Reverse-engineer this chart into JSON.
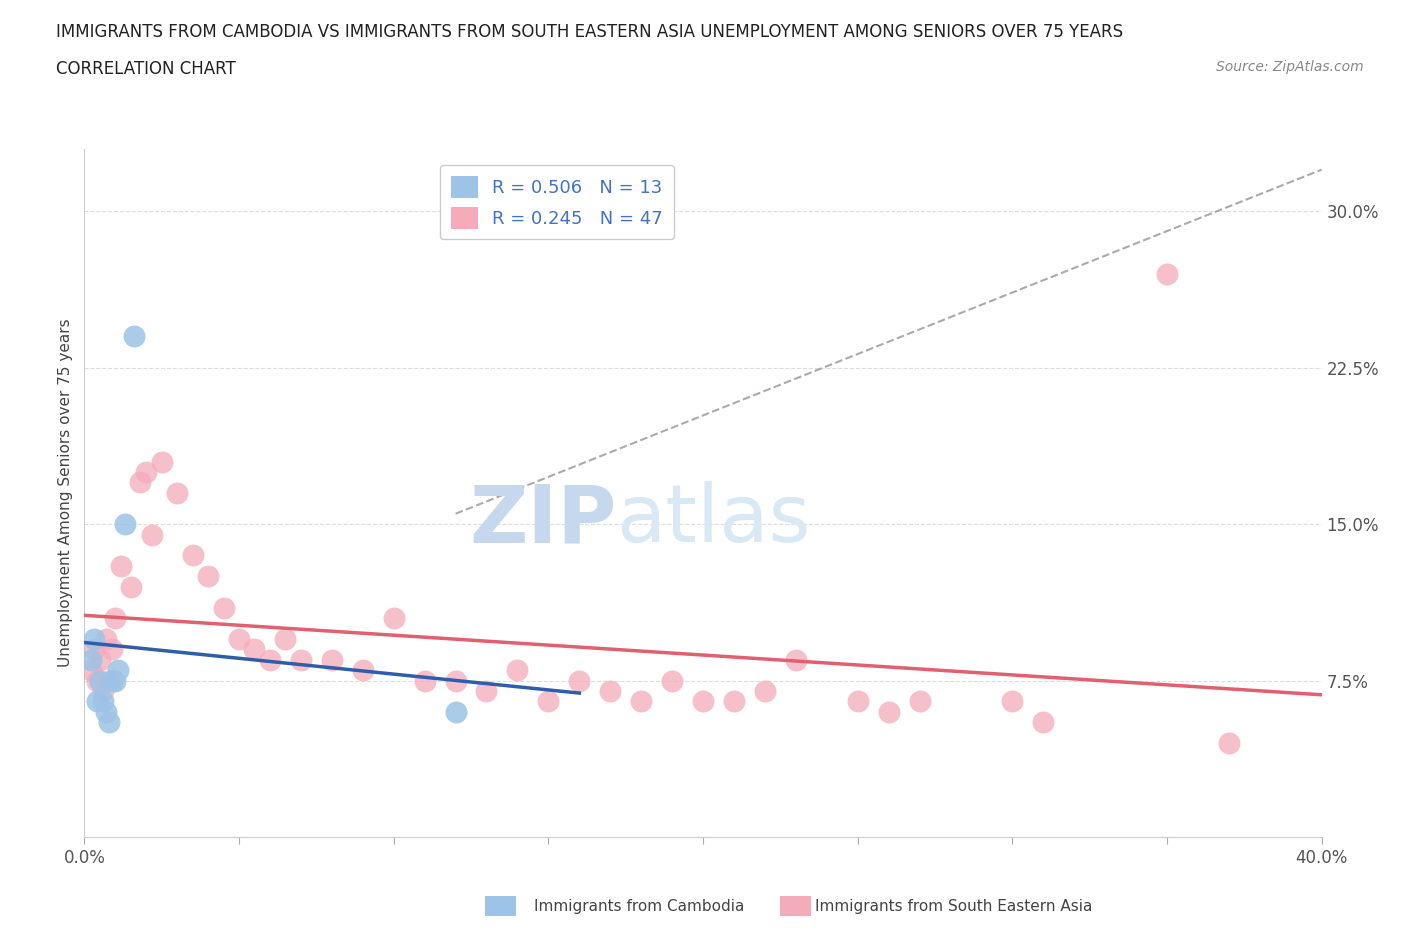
{
  "title_line1": "IMMIGRANTS FROM CAMBODIA VS IMMIGRANTS FROM SOUTH EASTERN ASIA UNEMPLOYMENT AMONG SENIORS OVER 75 YEARS",
  "title_line2": "CORRELATION CHART",
  "source_text": "Source: ZipAtlas.com",
  "ylabel": "Unemployment Among Seniors over 75 years",
  "xlim": [
    0.0,
    0.4
  ],
  "ylim": [
    0.0,
    0.33
  ],
  "r_cambodia": 0.506,
  "n_cambodia": 13,
  "r_sea": 0.245,
  "n_sea": 47,
  "legend_r_color": "#4472C4",
  "cambodia_color": "#9DC3E6",
  "sea_color": "#F4ABBA",
  "cambodia_line_color": "#2E5EAA",
  "sea_line_color": "#E06070",
  "ref_line_color": "#AAAAAA",
  "cambodia_scatter_x": [
    0.002,
    0.003,
    0.004,
    0.005,
    0.006,
    0.007,
    0.008,
    0.009,
    0.01,
    0.011,
    0.013,
    0.016,
    0.12
  ],
  "cambodia_scatter_y": [
    0.085,
    0.095,
    0.065,
    0.075,
    0.065,
    0.06,
    0.055,
    0.075,
    0.075,
    0.08,
    0.15,
    0.24,
    0.06
  ],
  "sea_scatter_x": [
    0.002,
    0.003,
    0.004,
    0.005,
    0.006,
    0.007,
    0.008,
    0.009,
    0.01,
    0.012,
    0.015,
    0.018,
    0.02,
    0.022,
    0.025,
    0.03,
    0.035,
    0.04,
    0.045,
    0.05,
    0.055,
    0.06,
    0.065,
    0.07,
    0.08,
    0.09,
    0.1,
    0.11,
    0.12,
    0.13,
    0.14,
    0.15,
    0.16,
    0.17,
    0.18,
    0.19,
    0.2,
    0.21,
    0.22,
    0.23,
    0.25,
    0.26,
    0.27,
    0.3,
    0.31,
    0.35,
    0.37
  ],
  "sea_scatter_y": [
    0.08,
    0.09,
    0.075,
    0.085,
    0.07,
    0.095,
    0.075,
    0.09,
    0.105,
    0.13,
    0.12,
    0.17,
    0.175,
    0.145,
    0.18,
    0.165,
    0.135,
    0.125,
    0.11,
    0.095,
    0.09,
    0.085,
    0.095,
    0.085,
    0.085,
    0.08,
    0.105,
    0.075,
    0.075,
    0.07,
    0.08,
    0.065,
    0.075,
    0.07,
    0.065,
    0.075,
    0.065,
    0.065,
    0.07,
    0.085,
    0.065,
    0.06,
    0.065,
    0.065,
    0.055,
    0.27,
    0.045
  ]
}
